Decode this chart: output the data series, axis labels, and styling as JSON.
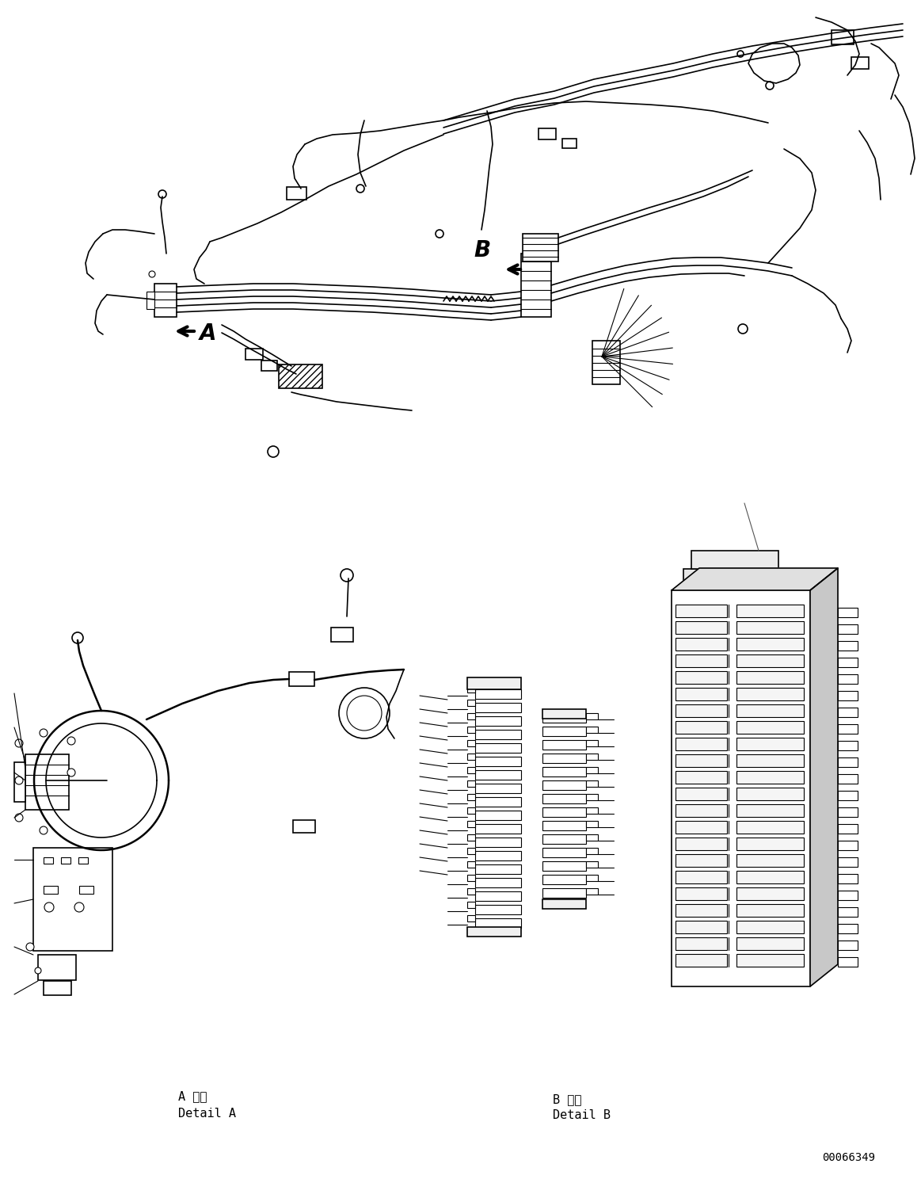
{
  "bg_color": "#ffffff",
  "line_color": "#000000",
  "fig_width": 11.63,
  "fig_height": 14.88,
  "dpi": 100,
  "part_number": "00066349",
  "label_A": "A",
  "label_B": "B",
  "detail_A_jp": "A 詳細",
  "detail_A_en": "Detail A",
  "detail_B_jp": "B 詳細",
  "detail_B_en": "Detail B",
  "font_size_label": 20,
  "font_size_detail": 11,
  "font_size_partnumber": 10
}
